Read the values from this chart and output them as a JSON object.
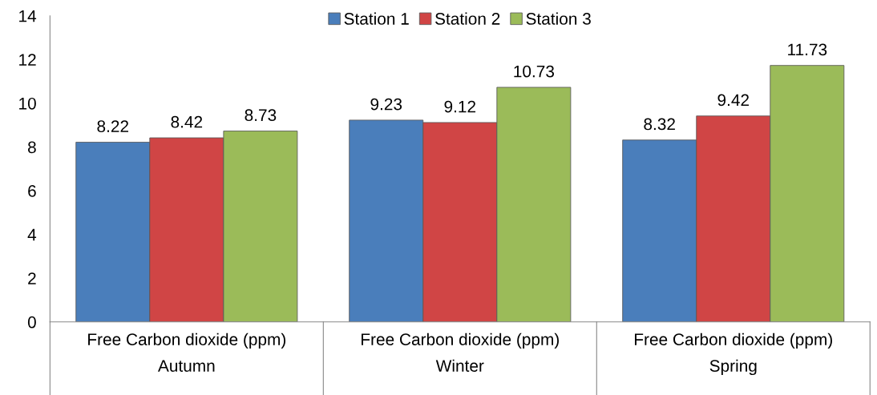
{
  "chart_data": {
    "type": "bar",
    "categories": [
      "Free Carbon dioxide (ppm)\nAutumn",
      "Free Carbon dioxide (ppm)\nWinter",
      "Free Carbon dioxide (ppm)\nSpring"
    ],
    "series": [
      {
        "name": "Station 1",
        "color": "#4a7ebb",
        "values": [
          8.22,
          9.23,
          8.32
        ]
      },
      {
        "name": "Station 2",
        "color": "#d04545",
        "values": [
          8.42,
          9.12,
          9.42
        ]
      },
      {
        "name": "Station 3",
        "color": "#9bbb59",
        "values": [
          8.73,
          10.73,
          11.73
        ]
      }
    ],
    "ylim": [
      0,
      14
    ],
    "yticks": [
      0,
      2,
      4,
      6,
      8,
      10,
      12,
      14
    ],
    "data_labels": true,
    "grid": false,
    "legend": "top"
  }
}
